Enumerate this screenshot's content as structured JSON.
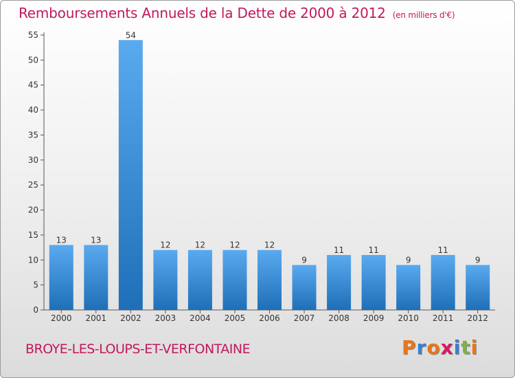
{
  "header": {
    "title": "Remboursements Annuels de la Dette de 2000 à 2012",
    "unit": "(en milliers d'€)"
  },
  "footer": {
    "commune": "BROYE-LES-LOUPS-ET-VERFONTAINE",
    "brand": "Proxiti",
    "brand_colors": [
      "#e8761b",
      "#3a7fd5",
      "#e8761b",
      "#d81b60",
      "#3a7fd5",
      "#7cb342",
      "#e8761b"
    ]
  },
  "chart_data": {
    "type": "bar",
    "categories": [
      "2000",
      "2001",
      "2002",
      "2003",
      "2004",
      "2005",
      "2006",
      "2007",
      "2008",
      "2009",
      "2010",
      "2011",
      "2012"
    ],
    "values": [
      13,
      13,
      54,
      12,
      12,
      12,
      12,
      9,
      11,
      11,
      9,
      11,
      9
    ],
    "ylim": [
      0,
      55
    ],
    "yticks": [
      0,
      5,
      10,
      15,
      20,
      25,
      30,
      35,
      40,
      45,
      50,
      55
    ],
    "grid": false,
    "bar_color": "#3a8fd8"
  }
}
